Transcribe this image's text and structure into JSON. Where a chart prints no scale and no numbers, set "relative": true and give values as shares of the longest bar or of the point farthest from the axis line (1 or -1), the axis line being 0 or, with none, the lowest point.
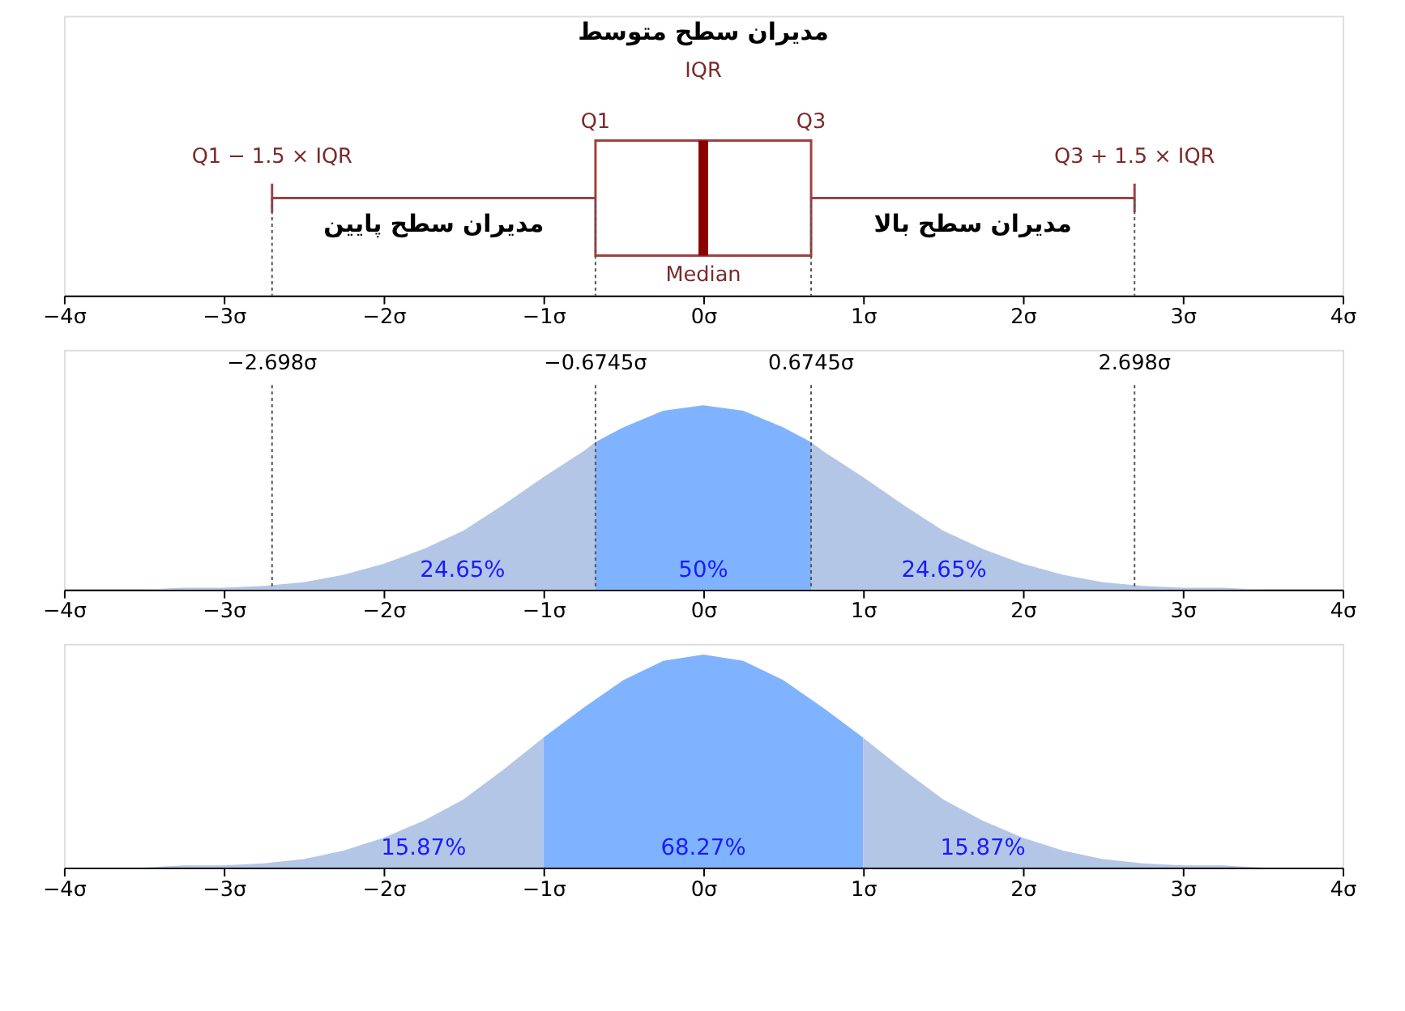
{
  "chart_data": [
    {
      "type": "box",
      "orientation": "horizontal",
      "series": [
        {
          "color": "#a04040",
          "boxes": [
            {
              "low": -2.698,
              "q1": -0.6745,
              "median": 0,
              "q3": 0.6745,
              "high": 2.698
            }
          ]
        }
      ],
      "xlim": [
        -4,
        4
      ],
      "xticks": [
        {
          "value": -4,
          "label": "−4σ"
        },
        {
          "value": -3,
          "label": "−3σ"
        },
        {
          "value": -2,
          "label": "−2σ"
        },
        {
          "value": -1,
          "label": "−1σ"
        },
        {
          "value": 0,
          "label": "0σ"
        },
        {
          "value": 1,
          "label": "1σ"
        },
        {
          "value": 2,
          "label": "2σ"
        },
        {
          "value": 3,
          "label": "3σ"
        },
        {
          "value": 4,
          "label": "4σ"
        }
      ],
      "ref_lines": [
        {
          "axis": "x",
          "value": -2.698,
          "line_style": "dotted"
        },
        {
          "axis": "x",
          "value": -0.6745,
          "line_style": "dotted"
        },
        {
          "axis": "x",
          "value": 0.6745,
          "line_style": "dotted"
        },
        {
          "axis": "x",
          "value": 2.698,
          "line_style": "dotted"
        }
      ],
      "annotations": [
        "مدیران سطح متوسط",
        "IQR",
        "Q1",
        "Q3",
        "Q1 − 1.5 × IQR",
        "Q3 + 1.5 × IQR",
        "مدیران سطح پایین",
        "مدیران سطح بالا",
        "Median"
      ]
    },
    {
      "type": "area",
      "relative": true,
      "series": [
        {
          "color": "#b3c6e6",
          "x": [
            -4,
            -3.75,
            -3.5,
            -3.25,
            -3,
            -2.75,
            -2.5,
            -2.25,
            -2,
            -1.75,
            -1.5,
            -1.25,
            -1,
            -0.75,
            -0.6745
          ],
          "values": [
            0,
            0,
            0,
            0.01,
            0.01,
            0.02,
            0.04,
            0.08,
            0.14,
            0.22,
            0.32,
            0.46,
            0.61,
            0.75,
            0.8
          ]
        },
        {
          "color": "#80b3ff",
          "x": [
            -0.6745,
            -0.5,
            -0.25,
            0,
            0.25,
            0.5,
            0.6745
          ],
          "values": [
            0.8,
            0.88,
            0.97,
            1,
            0.97,
            0.88,
            0.8
          ]
        },
        {
          "color": "#b3c6e6",
          "x": [
            0.6745,
            0.75,
            1,
            1.25,
            1.5,
            1.75,
            2,
            2.25,
            2.5,
            2.75,
            3,
            3.25,
            3.5,
            3.75,
            4
          ],
          "values": [
            0.8,
            0.75,
            0.61,
            0.46,
            0.32,
            0.22,
            0.14,
            0.08,
            0.04,
            0.02,
            0.01,
            0.01,
            0,
            0,
            0
          ]
        }
      ],
      "xlim": [
        -4,
        4
      ],
      "xticks": [
        {
          "value": -4,
          "label": "−4σ"
        },
        {
          "value": -3,
          "label": "−3σ"
        },
        {
          "value": -2,
          "label": "−2σ"
        },
        {
          "value": -1,
          "label": "−1σ"
        },
        {
          "value": 0,
          "label": "0σ"
        },
        {
          "value": 1,
          "label": "1σ"
        },
        {
          "value": 2,
          "label": "2σ"
        },
        {
          "value": 3,
          "label": "3σ"
        },
        {
          "value": 4,
          "label": "4σ"
        }
      ],
      "ref_lines": [
        {
          "axis": "x",
          "value": -2.698,
          "label": "−2.698σ",
          "line_style": "dotted"
        },
        {
          "axis": "x",
          "value": -0.6745,
          "label": "−0.6745σ",
          "line_style": "dotted"
        },
        {
          "axis": "x",
          "value": 0.6745,
          "label": "0.6745σ",
          "line_style": "dotted"
        },
        {
          "axis": "x",
          "value": 2.698,
          "label": "2.698σ",
          "line_style": "dotted"
        }
      ],
      "annotations": [
        "24.65%",
        "50%",
        "24.65%"
      ]
    },
    {
      "type": "area",
      "relative": true,
      "series": [
        {
          "color": "#b3c6e6",
          "x": [
            -4,
            -3.75,
            -3.5,
            -3.25,
            -3,
            -2.75,
            -2.5,
            -2.25,
            -2,
            -1.75,
            -1.5,
            -1.25,
            -1
          ],
          "values": [
            0,
            0,
            0,
            0.01,
            0.01,
            0.02,
            0.04,
            0.08,
            0.14,
            0.22,
            0.32,
            0.46,
            0.61
          ]
        },
        {
          "color": "#80b3ff",
          "x": [
            -1,
            -0.75,
            -0.5,
            -0.25,
            0,
            0.25,
            0.5,
            0.75,
            1
          ],
          "values": [
            0.61,
            0.75,
            0.88,
            0.97,
            1,
            0.97,
            0.88,
            0.75,
            0.61
          ]
        },
        {
          "color": "#b3c6e6",
          "x": [
            1,
            1.25,
            1.5,
            1.75,
            2,
            2.25,
            2.5,
            2.75,
            3,
            3.25,
            3.5,
            3.75,
            4
          ],
          "values": [
            0.61,
            0.46,
            0.32,
            0.22,
            0.14,
            0.08,
            0.04,
            0.02,
            0.01,
            0.01,
            0,
            0,
            0
          ]
        }
      ],
      "xlim": [
        -4,
        4
      ],
      "xticks": [
        {
          "value": -4,
          "label": "−4σ"
        },
        {
          "value": -3,
          "label": "−3σ"
        },
        {
          "value": -2,
          "label": "−2σ"
        },
        {
          "value": -1,
          "label": "−1σ"
        },
        {
          "value": 0,
          "label": "0σ"
        },
        {
          "value": 1,
          "label": "1σ"
        },
        {
          "value": 2,
          "label": "2σ"
        },
        {
          "value": 3,
          "label": "3σ"
        },
        {
          "value": 4,
          "label": "4σ"
        }
      ],
      "annotations": [
        "15.87%",
        "68.27%",
        "15.87%"
      ]
    }
  ]
}
